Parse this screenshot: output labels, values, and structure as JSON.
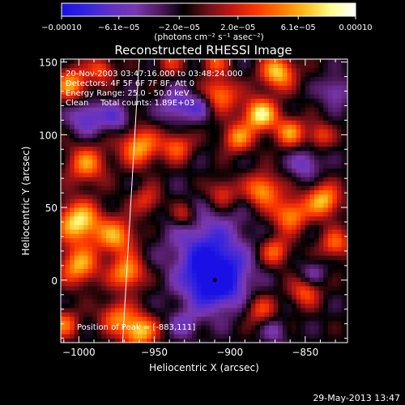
{
  "chart_data": {
    "type": "heatmap",
    "title": "Reconstructed RHESSI Image",
    "xlabel": "Heliocentric X (arcsec)",
    "ylabel": "Heliocentric Y (arcsec)",
    "xlim": [
      -1012,
      -822
    ],
    "ylim": [
      -43,
      152
    ],
    "xticks": [
      {
        "value": -1000,
        "label": "−1000"
      },
      {
        "value": -950,
        "label": "−950"
      },
      {
        "value": -900,
        "label": "−900"
      },
      {
        "value": -850,
        "label": "−850"
      }
    ],
    "yticks": [
      {
        "value": 0,
        "label": "0"
      },
      {
        "value": 50,
        "label": "50"
      },
      {
        "value": 100,
        "label": "100"
      },
      {
        "value": 150,
        "label": "150"
      }
    ],
    "colorbar": {
      "vmin": -0.0001,
      "vmax": 0.0001,
      "ticks": [
        {
          "value": -0.0001,
          "label": "−0.00010"
        },
        {
          "value": -6.1e-05,
          "label": "−6.1e−05"
        },
        {
          "value": -2e-05,
          "label": "−2.0e−05"
        },
        {
          "value": 2e-05,
          "label": "2.0e−05"
        },
        {
          "value": 6.1e-05,
          "label": "6.1e−05"
        },
        {
          "value": 0.0001,
          "label": "0.00010"
        }
      ],
      "unit_label": "(photons cm⁻² s⁻¹ asec⁻²)",
      "colors": [
        "#1a10e6",
        "#3324e0",
        "#6030c8",
        "#7a38b0",
        "#501a60",
        "#000000",
        "#701018",
        "#c81810",
        "#ff3a00",
        "#ff7a00",
        "#ffc020",
        "#ffff90",
        "#ffffff"
      ]
    },
    "annotations": {
      "time_range": "20-Nov-2003 03:47:16.000 to 03:48:24.000",
      "detectors": "Detectors: 4F 5F 6F 7F 8F, Att 0",
      "energy_range": "Energy Range: 25.0 - 50.0 keV",
      "method": "Clean",
      "total_counts": "Total counts: 1.89E+03",
      "peak_position": "Position of Peak = [-883,111]"
    },
    "peak": {
      "x": -883,
      "y": 111
    },
    "hotspots": [
      {
        "x": -880,
        "y": 114,
        "intensity": 1.0,
        "sigma": 8
      },
      {
        "x": -868,
        "y": 143,
        "intensity": 0.9,
        "sigma": 8
      },
      {
        "x": -906,
        "y": 128,
        "intensity": 0.7,
        "sigma": 8
      },
      {
        "x": -860,
        "y": 102,
        "intensity": 0.7,
        "sigma": 7
      },
      {
        "x": -895,
        "y": 98,
        "intensity": 0.7,
        "sigma": 7
      },
      {
        "x": -960,
        "y": 92,
        "intensity": 0.8,
        "sigma": 9
      },
      {
        "x": -935,
        "y": 92,
        "intensity": 0.6,
        "sigma": 7
      },
      {
        "x": -1005,
        "y": 135,
        "intensity": 0.75,
        "sigma": 8
      },
      {
        "x": -985,
        "y": 145,
        "intensity": 0.55,
        "sigma": 6
      },
      {
        "x": -1000,
        "y": 40,
        "intensity": 1.0,
        "sigma": 10
      },
      {
        "x": -995,
        "y": 80,
        "intensity": 0.7,
        "sigma": 9
      },
      {
        "x": -1000,
        "y": 10,
        "intensity": 0.8,
        "sigma": 9
      },
      {
        "x": -975,
        "y": 30,
        "intensity": 0.75,
        "sigma": 9
      },
      {
        "x": -968,
        "y": 5,
        "intensity": 0.8,
        "sigma": 8
      },
      {
        "x": -960,
        "y": -35,
        "intensity": 0.9,
        "sigma": 8
      },
      {
        "x": -975,
        "y": -25,
        "intensity": 0.6,
        "sigma": 8
      },
      {
        "x": -955,
        "y": 55,
        "intensity": 0.45,
        "sigma": 7
      },
      {
        "x": -930,
        "y": 45,
        "intensity": 0.45,
        "sigma": 6
      },
      {
        "x": -905,
        "y": 60,
        "intensity": 0.5,
        "sigma": 7
      },
      {
        "x": -878,
        "y": 62,
        "intensity": 0.8,
        "sigma": 8
      },
      {
        "x": -860,
        "y": 45,
        "intensity": 0.75,
        "sigma": 8
      },
      {
        "x": -870,
        "y": 20,
        "intensity": 0.6,
        "sigma": 7
      },
      {
        "x": -838,
        "y": 55,
        "intensity": 0.85,
        "sigma": 8
      },
      {
        "x": -830,
        "y": 25,
        "intensity": 0.6,
        "sigma": 7
      },
      {
        "x": -850,
        "y": -8,
        "intensity": 0.55,
        "sigma": 7
      },
      {
        "x": -880,
        "y": -20,
        "intensity": 0.5,
        "sigma": 7
      },
      {
        "x": -840,
        "y": 100,
        "intensity": 0.5,
        "sigma": 6
      },
      {
        "x": -910,
        "y": 150,
        "intensity": 0.5,
        "sigma": 6
      },
      {
        "x": -940,
        "y": 150,
        "intensity": 0.4,
        "sigma": 6
      },
      {
        "x": -1010,
        "y": -30,
        "intensity": 0.6,
        "sigma": 7
      }
    ],
    "coldspots": [
      {
        "x": -910,
        "y": 0,
        "intensity": -1.0,
        "sigma": 14
      },
      {
        "x": -915,
        "y": 25,
        "intensity": -0.5,
        "sigma": 18
      },
      {
        "x": -995,
        "y": 112,
        "intensity": -0.55,
        "sigma": 8
      },
      {
        "x": -975,
        "y": 112,
        "intensity": -0.45,
        "sigma": 7
      },
      {
        "x": -935,
        "y": 120,
        "intensity": -0.5,
        "sigma": 8
      },
      {
        "x": -920,
        "y": 120,
        "intensity": -0.4,
        "sigma": 6
      },
      {
        "x": -850,
        "y": 80,
        "intensity": -0.45,
        "sigma": 7
      },
      {
        "x": -830,
        "y": 130,
        "intensity": -0.4,
        "sigma": 7
      },
      {
        "x": -845,
        "y": 5,
        "intensity": -0.3,
        "sigma": 6
      },
      {
        "x": -930,
        "y": -30,
        "intensity": -0.35,
        "sigma": 7
      },
      {
        "x": -870,
        "y": -35,
        "intensity": -0.3,
        "sigma": 6
      }
    ],
    "limb_line": {
      "x_top": -960,
      "y_top": 152,
      "x_bottom": -971,
      "y_bottom": -43
    },
    "grid": false
  },
  "footer": {
    "date": "29-May-2013 13:47"
  }
}
